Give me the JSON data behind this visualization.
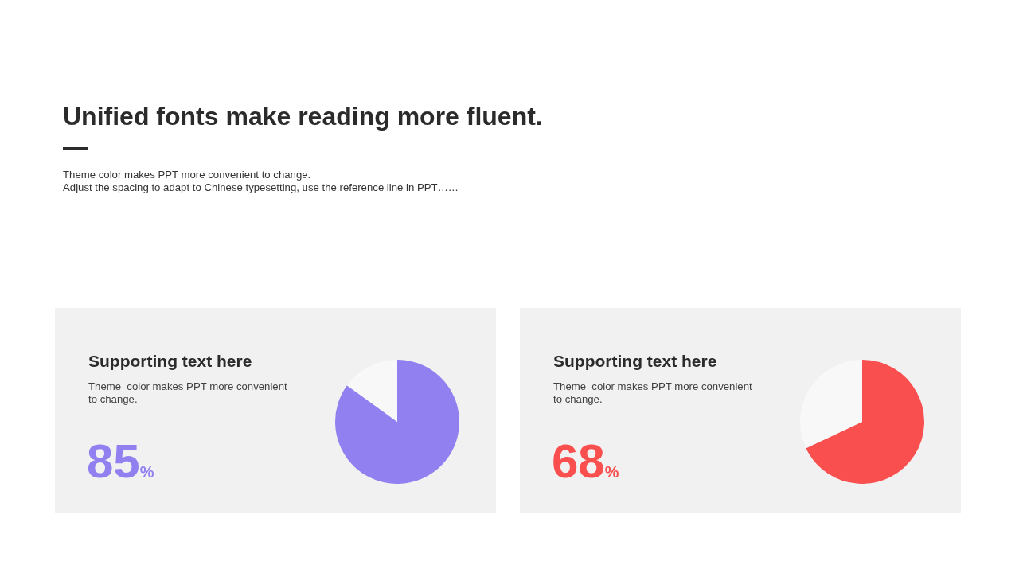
{
  "chart_data": [
    {
      "type": "other",
      "title": "Unified fonts make reading more fluent.",
      "subtitle": "Theme color makes PPT more convenient to change.\nAdjust the spacing to adapt to Chinese typesetting, use the reference line in PPT……"
    },
    {
      "type": "pie",
      "title": "Supporting text here",
      "subtitle": "Theme  color makes PPT more convenient to change.",
      "categories": [
        null,
        null
      ],
      "values": [
        85,
        15
      ],
      "colors": [
        "#9181f0",
        "#f8f8f8"
      ],
      "annotations": [
        "85%"
      ]
    },
    {
      "type": "pie",
      "title": "Supporting text here",
      "subtitle": "Theme  color makes PPT more convenient to change.",
      "categories": [
        null,
        null
      ],
      "values": [
        68,
        32
      ],
      "colors": [
        "#fa4f4f",
        "#f8f8f8"
      ],
      "annotations": [
        "68%"
      ]
    }
  ]
}
